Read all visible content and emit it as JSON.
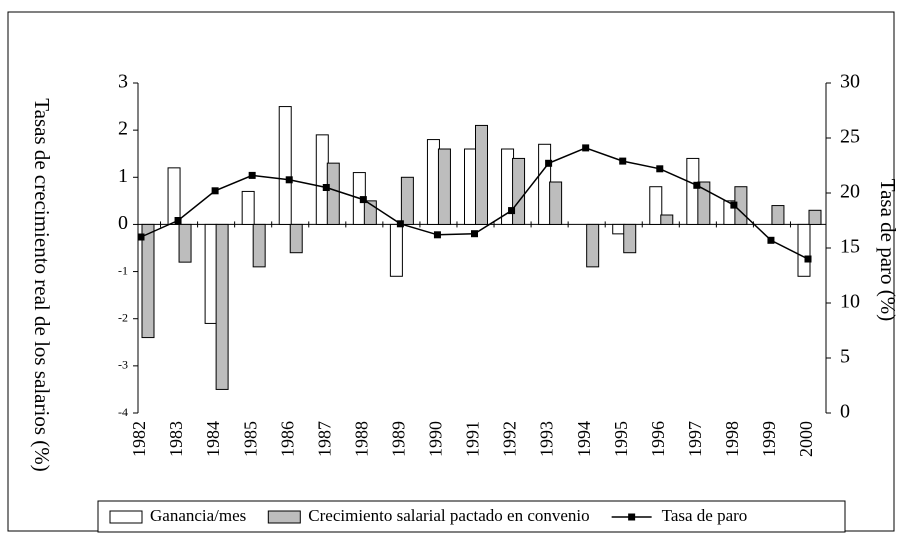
{
  "chart_data": {
    "type": "bar",
    "ylabel": "Tasas de crecimiento real de los salarios (%)",
    "y2label": "Tasa de paro (%)",
    "categories": [
      "1982",
      "1983",
      "1984",
      "1985",
      "1986",
      "1987",
      "1988",
      "1989",
      "1990",
      "1991",
      "1992",
      "1993",
      "1994",
      "1995",
      "1996",
      "1997",
      "1998",
      "1999",
      "2000"
    ],
    "series": [
      {
        "name": "Ganancia/mes",
        "type": "bar",
        "color": "#ffffff",
        "values": [
          0,
          1.2,
          -2.1,
          0.7,
          2.5,
          1.9,
          1.1,
          -1.1,
          1.8,
          1.6,
          1.6,
          1.7,
          0,
          -0.2,
          0.8,
          1.4,
          0.5,
          0,
          -1.1
        ]
      },
      {
        "name": "Crecimiento salarial pactado en convenio",
        "type": "bar",
        "color": "#bdbdbd",
        "values": [
          -2.4,
          -0.8,
          -3.5,
          -0.9,
          -0.6,
          1.3,
          0.5,
          1.0,
          1.6,
          2.1,
          1.4,
          0.9,
          -0.9,
          -0.6,
          0.2,
          0.9,
          0.8,
          0.4,
          0.3
        ]
      },
      {
        "name": "Tasa de paro",
        "type": "line",
        "axis": "y2",
        "color": "#000000",
        "values": [
          16.0,
          17.5,
          20.2,
          21.6,
          21.2,
          20.5,
          19.4,
          17.2,
          16.2,
          16.3,
          18.4,
          22.7,
          24.1,
          22.9,
          22.2,
          20.7,
          18.9,
          15.7,
          14.0
        ]
      }
    ],
    "ylim": [
      -4,
      3
    ],
    "yticks": [
      -4,
      -3,
      -2,
      -1,
      0,
      1,
      2,
      3
    ],
    "y2lim": [
      0,
      30
    ],
    "y2ticks": [
      0,
      5,
      10,
      15,
      20,
      25,
      30
    ],
    "legend": "bottom"
  }
}
